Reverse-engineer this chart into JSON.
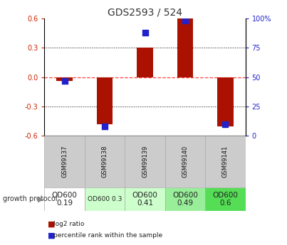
{
  "title": "GDS2593 / 524",
  "samples": [
    "GSM99137",
    "GSM99138",
    "GSM99139",
    "GSM99140",
    "GSM99141"
  ],
  "log2_ratio": [
    -0.04,
    -0.48,
    0.3,
    0.6,
    -0.5
  ],
  "percentile_rank": [
    47,
    8,
    88,
    98,
    10
  ],
  "growth_protocol": [
    "OD600\n0.19",
    "OD600 0.3",
    "OD600\n0.41",
    "OD600\n0.49",
    "OD600\n0.6"
  ],
  "protocol_colors": [
    "#ffffff",
    "#ccffcc",
    "#ccffcc",
    "#99ee99",
    "#55dd55"
  ],
  "protocol_fontsize": [
    7.5,
    6.5,
    7.5,
    7.5,
    7.5
  ],
  "ylim": [
    -0.6,
    0.6
  ],
  "yticks_left": [
    -0.6,
    -0.3,
    0.0,
    0.3,
    0.6
  ],
  "yticks_right": [
    0,
    25,
    50,
    75,
    100
  ],
  "bar_color_red": "#aa1100",
  "dot_color_blue": "#2222cc",
  "left_tick_color": "#cc2200",
  "right_tick_color": "#2222cc",
  "zero_line_color": "#ff4444",
  "grid_color": "#111111",
  "bg_color": "#ffffff",
  "sample_bg": "#cccccc",
  "bar_width": 0.4
}
